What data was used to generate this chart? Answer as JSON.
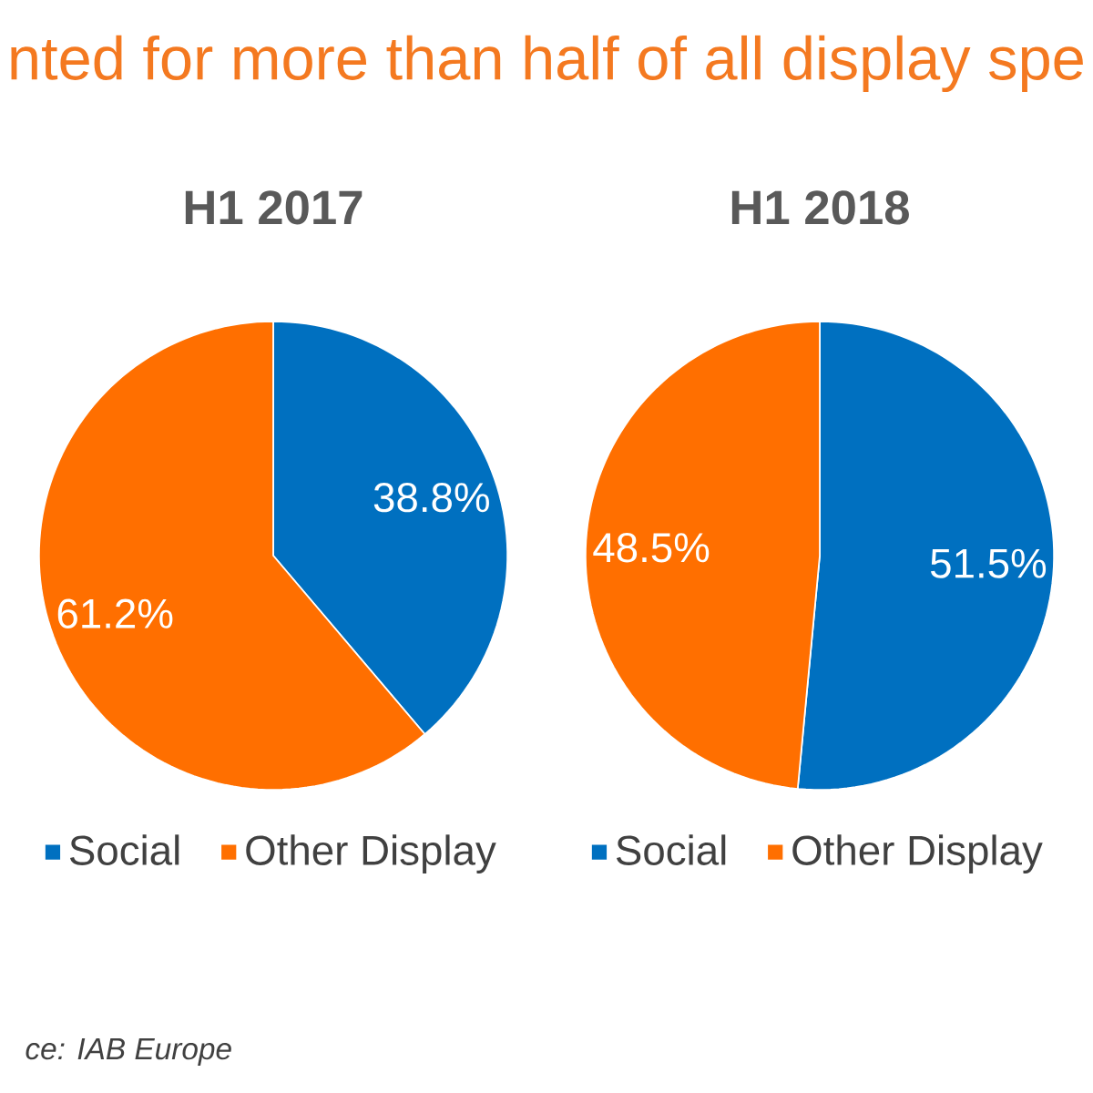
{
  "chart_data": [
    {
      "type": "pie",
      "title": "H1 2017",
      "categories": [
        "Social",
        "Other Display"
      ],
      "values": [
        38.8,
        61.2
      ],
      "colors": [
        "#0070c0",
        "#ff6f00"
      ],
      "value_labels": [
        "38.8%",
        "61.2%"
      ],
      "legend": "bottom",
      "annotations": [
        "nted for more than half of all display spe",
        "ce: IAB Europe"
      ]
    },
    {
      "type": "pie",
      "title": "H1 2018",
      "categories": [
        "Social",
        "Other Display"
      ],
      "values": [
        51.5,
        48.5
      ],
      "colors": [
        "#0070c0",
        "#ff6f00"
      ],
      "value_labels": [
        "51.5%",
        "48.5%"
      ],
      "legend": "bottom"
    }
  ]
}
